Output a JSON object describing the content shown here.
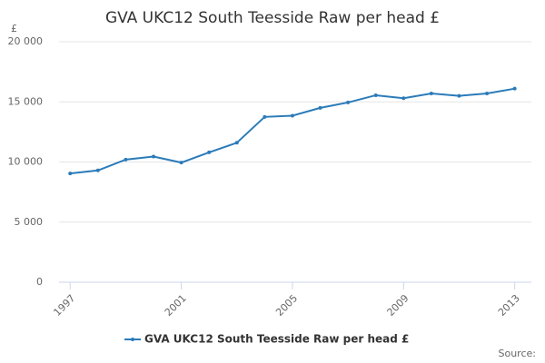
{
  "chart_data": {
    "type": "line",
    "title": "GVA UKC12 South Teesside Raw per head £",
    "y_label": "£",
    "source": "Source:",
    "x": [
      1997,
      1998,
      1999,
      2000,
      2001,
      2002,
      2003,
      2004,
      2005,
      2006,
      2007,
      2008,
      2009,
      2010,
      2011,
      2012,
      2013
    ],
    "series": [
      {
        "name": "GVA UKC12 South Teesside Raw per head £",
        "color": "#2b7bb9",
        "values": [
          9050,
          9300,
          10200,
          10450,
          9950,
          10800,
          11600,
          13750,
          13850,
          14500,
          14950,
          15550,
          15300,
          15700,
          15500,
          15700,
          16100
        ]
      }
    ],
    "xlim": [
      1996.6,
      2013.6
    ],
    "xticks": [
      1997,
      2001,
      2005,
      2009,
      2013
    ],
    "ylim": [
      0,
      20000
    ],
    "yticks": [
      0,
      {
        "value": 5000,
        "label": "5 000"
      },
      {
        "value": 10000,
        "label": "10 000"
      },
      {
        "value": 15000,
        "label": "15 000"
      },
      {
        "value": 20000,
        "label": "20 000"
      }
    ],
    "grid": true
  }
}
